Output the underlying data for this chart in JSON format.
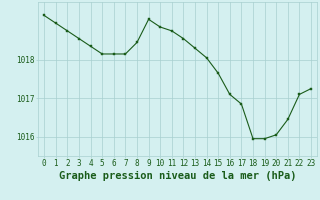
{
  "x": [
    0,
    1,
    2,
    3,
    4,
    5,
    6,
    7,
    8,
    9,
    10,
    11,
    12,
    13,
    14,
    15,
    16,
    17,
    18,
    19,
    20,
    21,
    22,
    23
  ],
  "y": [
    1019.15,
    1018.95,
    1018.75,
    1018.55,
    1018.35,
    1018.15,
    1018.15,
    1018.15,
    1018.45,
    1019.05,
    1018.85,
    1018.75,
    1018.55,
    1018.3,
    1018.05,
    1017.65,
    1017.1,
    1016.85,
    1015.95,
    1015.95,
    1016.05,
    1016.45,
    1017.1,
    1017.25
  ],
  "line_color": "#1a5c1a",
  "marker_color": "#1a5c1a",
  "bg_color": "#d4f0f0",
  "grid_color": "#a8d0d0",
  "text_color": "#1a5c1a",
  "xlabel": "Graphe pression niveau de la mer (hPa)",
  "yticks": [
    1016,
    1017,
    1018
  ],
  "ylim": [
    1015.5,
    1019.5
  ],
  "xlim": [
    -0.5,
    23.5
  ],
  "tick_fontsize": 5.5,
  "xlabel_fontsize": 7.5
}
